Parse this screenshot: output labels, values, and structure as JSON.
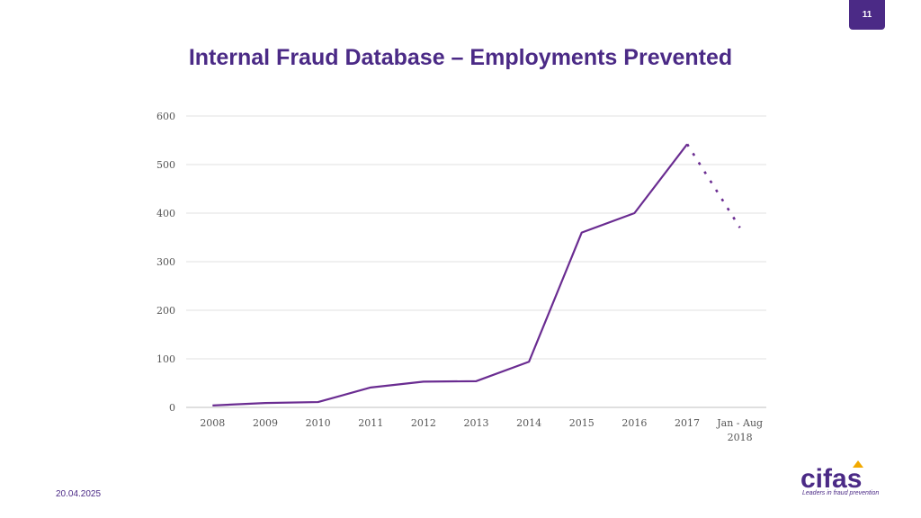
{
  "slide": {
    "page_number": "11",
    "title": "Internal Fraud Database – Employments Prevented",
    "date": "20.04.2025"
  },
  "logo": {
    "name": "cifas",
    "tagline": "Leaders in fraud prevention"
  },
  "chart_data": {
    "type": "line",
    "categories": [
      "2008",
      "2009",
      "2010",
      "2011",
      "2012",
      "2013",
      "2014",
      "2015",
      "2016",
      "2017",
      "Jan - Aug 2018"
    ],
    "category_lines": [
      [
        "2008"
      ],
      [
        "2009"
      ],
      [
        "2010"
      ],
      [
        "2011"
      ],
      [
        "2012"
      ],
      [
        "2013"
      ],
      [
        "2014"
      ],
      [
        "2015"
      ],
      [
        "2016"
      ],
      [
        "2017"
      ],
      [
        "Jan - Aug",
        "2018"
      ]
    ],
    "series": [
      {
        "values": [
          4,
          9,
          11,
          41,
          53,
          54,
          94,
          360,
          400,
          542,
          370
        ],
        "color": "#6a2c91",
        "dashed_last_segment": true
      }
    ],
    "ylim": [
      0,
      600
    ],
    "yticks": [
      0,
      100,
      200,
      300,
      400,
      500,
      600
    ],
    "grid": true,
    "title": "Internal Fraud Database – Employments Prevented"
  }
}
